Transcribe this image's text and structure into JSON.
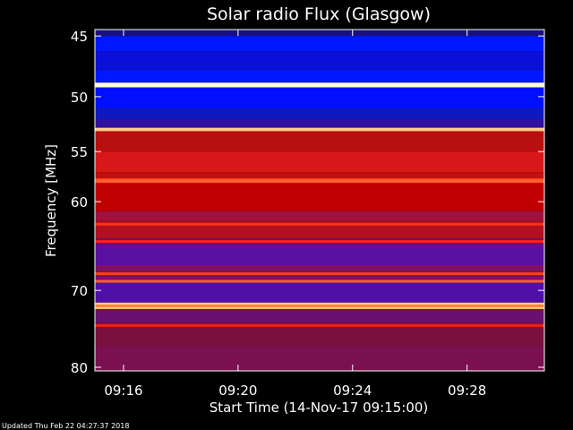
{
  "chart_data": {
    "type": "heatmap",
    "title": "Solar radio Flux (Glasgow)",
    "xlabel": "Start Time (14-Nov-17 09:15:00)",
    "ylabel": "Frequency [MHz]",
    "x_ticks": [
      "09:16",
      "09:20",
      "09:24",
      "09:28"
    ],
    "x_tick_minutes": [
      1,
      5,
      9,
      13
    ],
    "x_range_minutes": [
      0,
      15.7
    ],
    "y_ticks": [
      45,
      50,
      55,
      60,
      70,
      80
    ],
    "y_range_mhz": [
      44.5,
      80.5
    ],
    "y_scale": "log",
    "bands": [
      {
        "from": 44.5,
        "to": 45.0,
        "color": "#1a1080"
      },
      {
        "from": 45.0,
        "to": 46.2,
        "color": "#0018ff"
      },
      {
        "from": 46.2,
        "to": 47.8,
        "color": "#0a10d8"
      },
      {
        "from": 47.8,
        "to": 48.8,
        "color": "#0018ff"
      },
      {
        "from": 48.8,
        "to": 49.2,
        "color": "#ffffd0"
      },
      {
        "from": 49.2,
        "to": 51.0,
        "color": "#0010ff"
      },
      {
        "from": 51.0,
        "to": 52.0,
        "color": "#1018c0"
      },
      {
        "from": 52.0,
        "to": 52.8,
        "color": "#3010a0"
      },
      {
        "from": 52.8,
        "to": 53.1,
        "color": "#ffb070"
      },
      {
        "from": 53.1,
        "to": 55.0,
        "color": "#b81010"
      },
      {
        "from": 55.0,
        "to": 57.0,
        "color": "#d81818"
      },
      {
        "from": 57.0,
        "to": 57.6,
        "color": "#c01010"
      },
      {
        "from": 57.6,
        "to": 58.1,
        "color": "#ff4020"
      },
      {
        "from": 58.1,
        "to": 61.0,
        "color": "#c00000"
      },
      {
        "from": 61.0,
        "to": 62.0,
        "color": "#a01040"
      },
      {
        "from": 62.0,
        "to": 64.0,
        "color": "#b01020"
      },
      {
        "from": 64.0,
        "to": 67.0,
        "color": "#5a10a0"
      },
      {
        "from": 67.0,
        "to": 69.0,
        "color": "#801060"
      },
      {
        "from": 69.0,
        "to": 71.5,
        "color": "#5010a8"
      },
      {
        "from": 71.5,
        "to": 72.3,
        "color": "#ffd080"
      },
      {
        "from": 72.3,
        "to": 74.0,
        "color": "#6a1070"
      },
      {
        "from": 74.0,
        "to": 77.0,
        "color": "#7a1040"
      },
      {
        "from": 77.0,
        "to": 80.5,
        "color": "#7a1050"
      }
    ],
    "lines": [
      {
        "mhz": 52.9,
        "color": "#ffd090"
      },
      {
        "mhz": 57.9,
        "color": "#ff6030"
      },
      {
        "mhz": 62.4,
        "color": "#ff3018"
      },
      {
        "mhz": 64.3,
        "color": "#ff2010"
      },
      {
        "mhz": 68.0,
        "color": "#ff4010"
      },
      {
        "mhz": 68.9,
        "color": "#ff6020"
      },
      {
        "mhz": 71.9,
        "color": "#ff8040"
      },
      {
        "mhz": 74.4,
        "color": "#ff2010"
      }
    ],
    "colors": {
      "background": "#000000",
      "axes": "#ffffff"
    }
  },
  "footer": {
    "updated": "Updated Thu Feb 22 04:27:37 2018"
  }
}
